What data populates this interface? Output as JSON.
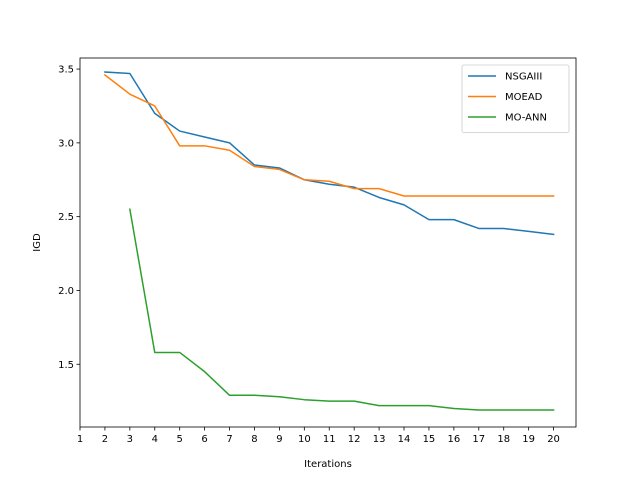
{
  "chart_data": {
    "type": "line",
    "title": "",
    "xlabel": "Iterations",
    "ylabel": "IGD",
    "xlim": [
      1,
      20.9
    ],
    "ylim": [
      1.075,
      3.575
    ],
    "x_ticks": [
      1,
      2,
      3,
      4,
      5,
      6,
      7,
      8,
      9,
      10,
      11,
      12,
      13,
      14,
      15,
      16,
      17,
      18,
      19,
      20
    ],
    "x_tick_labels": [
      "1",
      "2",
      "3",
      "4",
      "5",
      "6",
      "7",
      "8",
      "9",
      "10",
      "11",
      "12",
      "13",
      "14",
      "15",
      "16",
      "17",
      "18",
      "19",
      "20"
    ],
    "y_ticks": [
      1.5,
      2.0,
      2.5,
      3.0,
      3.5
    ],
    "y_tick_labels": [
      "1.5",
      "2.0",
      "2.5",
      "3.0",
      "3.5"
    ],
    "grid": false,
    "legend": {
      "position": "top-right"
    },
    "series": [
      {
        "name": "NSGAIII",
        "color": "#1f77b4",
        "x": [
          2,
          3,
          4,
          5,
          6,
          7,
          8,
          9,
          10,
          11,
          12,
          13,
          14,
          15,
          16,
          17,
          18,
          19,
          20
        ],
        "values": [
          3.48,
          3.47,
          3.2,
          3.08,
          3.04,
          3.0,
          2.85,
          2.83,
          2.75,
          2.72,
          2.7,
          2.63,
          2.58,
          2.48,
          2.48,
          2.42,
          2.42,
          2.4,
          2.38
        ]
      },
      {
        "name": "MOEAD",
        "color": "#ff7f0e",
        "x": [
          2,
          3,
          4,
          5,
          6,
          7,
          8,
          9,
          10,
          11,
          12,
          13,
          14,
          15,
          16,
          17,
          18,
          19,
          20
        ],
        "values": [
          3.46,
          3.33,
          3.25,
          2.98,
          2.98,
          2.95,
          2.84,
          2.82,
          2.75,
          2.74,
          2.69,
          2.69,
          2.64,
          2.64,
          2.64,
          2.64,
          2.64,
          2.64,
          2.64
        ]
      },
      {
        "name": "MO-ANN",
        "color": "#2ca02c",
        "x": [
          3,
          4,
          5,
          6,
          7,
          8,
          9,
          10,
          11,
          12,
          13,
          14,
          15,
          16,
          17,
          18,
          19,
          20
        ],
        "values": [
          2.55,
          1.58,
          1.58,
          1.45,
          1.29,
          1.29,
          1.28,
          1.26,
          1.25,
          1.25,
          1.22,
          1.22,
          1.22,
          1.2,
          1.19,
          1.19,
          1.19,
          1.19
        ]
      }
    ]
  }
}
